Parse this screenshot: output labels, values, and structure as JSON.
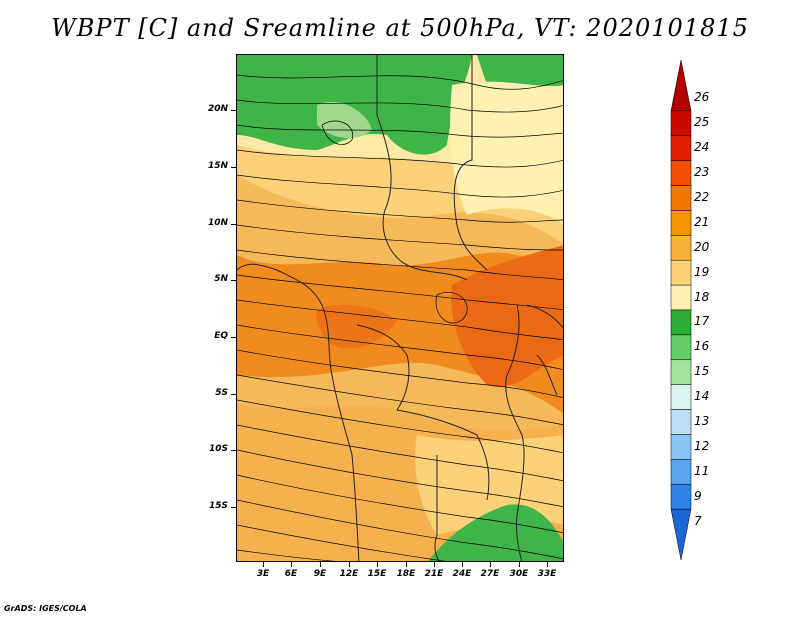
{
  "title": "WBPT [C] and Sreamline at 500hPa, VT: 2020101815",
  "footer": "GrADS: IGES/COLA",
  "map": {
    "lat_labels": [
      "20N",
      "15N",
      "10N",
      "5N",
      "EQ",
      "5S",
      "10S",
      "15S"
    ],
    "lon_labels": [
      "3E",
      "6E",
      "9E",
      "12E",
      "15E",
      "18E",
      "21E",
      "24E",
      "27E",
      "30E",
      "33E"
    ]
  },
  "colorbar": {
    "labels": [
      "26",
      "25",
      "24",
      "23",
      "22",
      "21",
      "20",
      "19",
      "18",
      "17",
      "16",
      "15",
      "14",
      "13",
      "12",
      "11",
      "9",
      "7"
    ],
    "colors": [
      "#b40000",
      "#c80a00",
      "#e02000",
      "#f05000",
      "#f07800",
      "#f49400",
      "#f8b23a",
      "#fbd27a",
      "#fdf2b4",
      "#2ead36",
      "#66cc66",
      "#a2e4a0",
      "#dbf4f0",
      "#bde0f8",
      "#8cc4f4",
      "#5aa3ee",
      "#2f82e6",
      "#1a66d8"
    ]
  }
}
